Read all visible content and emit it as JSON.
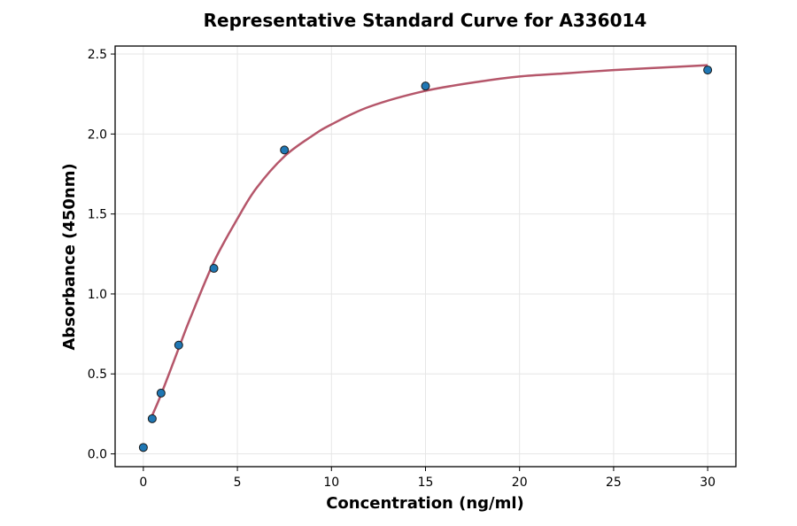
{
  "chart_data": {
    "type": "scatter",
    "title": "Representative Standard Curve for A336014",
    "xlabel": "Concentration (ng/ml)",
    "ylabel": "Absorbance (450nm)",
    "xlim": [
      -1.5,
      31.5
    ],
    "ylim": [
      -0.08,
      2.55
    ],
    "xticks": [
      0,
      5,
      10,
      15,
      20,
      25,
      30
    ],
    "yticks": [
      0.0,
      0.5,
      1.0,
      1.5,
      2.0,
      2.5
    ],
    "xtick_labels": [
      "0",
      "5",
      "10",
      "15",
      "20",
      "25",
      "30"
    ],
    "ytick_labels": [
      "0.0",
      "0.5",
      "1.0",
      "1.5",
      "2.0",
      "2.5"
    ],
    "grid": true,
    "series": [
      {
        "kind": "points",
        "color": "#1f77b4",
        "x": [
          0,
          0.47,
          0.94,
          1.88,
          3.75,
          7.5,
          15,
          30
        ],
        "y": [
          0.04,
          0.22,
          0.38,
          0.68,
          1.16,
          1.9,
          2.3,
          2.4
        ]
      },
      {
        "kind": "fit-curve",
        "color": "#b5566a",
        "x": [
          0.47,
          0.94,
          1.88,
          2.5,
          3.75,
          5,
          6,
          7.5,
          9,
          10,
          12,
          15,
          18,
          20,
          22.5,
          25,
          27.5,
          30
        ],
        "y": [
          0.24,
          0.37,
          0.66,
          0.85,
          1.2,
          1.47,
          1.66,
          1.86,
          1.99,
          2.06,
          2.17,
          2.27,
          2.33,
          2.36,
          2.38,
          2.4,
          2.415,
          2.43
        ]
      }
    ]
  }
}
